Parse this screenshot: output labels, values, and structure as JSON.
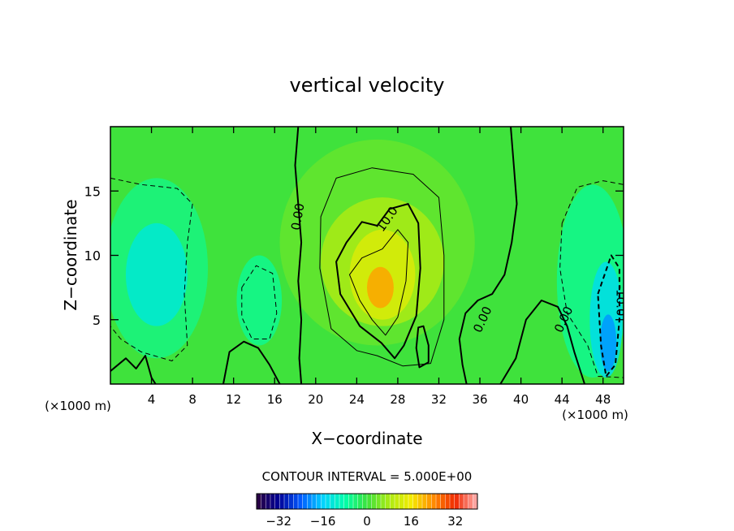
{
  "chart_data": {
    "type": "heatmap",
    "title": "vertical velocity",
    "xlabel": "X−coordinate",
    "ylabel": "Z−coordinate",
    "x_unit_left": "(×1000 m)",
    "x_unit_right": "(×1000 m)",
    "xlim": [
      0,
      50
    ],
    "ylim": [
      0,
      20
    ],
    "x_ticks": [
      4,
      8,
      12,
      16,
      20,
      24,
      28,
      32,
      36,
      40,
      44,
      48
    ],
    "y_ticks": [
      5,
      10,
      15
    ],
    "contour_interval_label": "CONTOUR INTERVAL = 5.000E+00",
    "contour_labels": [
      {
        "text": "0.00",
        "x": 18.3,
        "z": 13.0,
        "angle": -80
      },
      {
        "text": "10.0",
        "x": 27.0,
        "z": 12.8,
        "angle": -55
      },
      {
        "text": "0.00",
        "x": 36.3,
        "z": 5.0,
        "angle": -65
      },
      {
        "text": "0.00",
        "x": 44.2,
        "z": 5.0,
        "angle": -65
      },
      {
        "text": "-10.0",
        "x": 49.7,
        "z": 6.5,
        "angle": 90
      }
    ],
    "features": [
      {
        "kind": "max",
        "x": 26.3,
        "z": 7.5,
        "value": 22
      },
      {
        "kind": "min",
        "x": 48.5,
        "z": 3.5,
        "value": -20
      },
      {
        "kind": "min",
        "x": 4.5,
        "z": 8.5,
        "value": -12
      },
      {
        "kind": "min",
        "x": 14.5,
        "z": 6.5,
        "value": -7
      }
    ],
    "colorbar": {
      "min": -40,
      "max": 40,
      "ticks": [
        -32,
        -16,
        0,
        16,
        32
      ],
      "tick_labels": [
        "−32",
        "−16",
        "0",
        "16",
        "32"
      ]
    }
  }
}
